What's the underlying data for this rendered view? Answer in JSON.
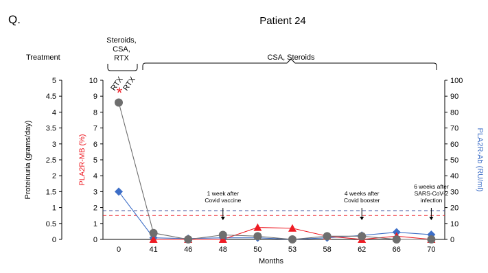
{
  "panel_letter": "Q.",
  "treatment_label": "Treatment",
  "treatment_first": [
    "Steroids,",
    "CSA,",
    "RTX"
  ],
  "treatment_second": "CSA, Steroids",
  "rtx_labels": [
    "RTX",
    "RTX"
  ],
  "asterisk": "*",
  "colors": {
    "proteinuria": "#6e6e6e",
    "pla2r_mb": "#ee1c24",
    "pla2r_ab": "#3d6ec7"
  },
  "chart_data": {
    "type": "line",
    "title": "Patient 24",
    "xlabel": "Months",
    "categories": [
      "0",
      "41",
      "46",
      "48",
      "50",
      "53",
      "58",
      "62",
      "66",
      "70"
    ],
    "y_axes": [
      {
        "id": "left-outer",
        "label": "Proteinuria (grams/day)",
        "range": [
          0,
          5
        ],
        "ticks": [
          "0",
          "0.5",
          "1",
          "1.5",
          "2",
          "2.5",
          "3",
          "3.5",
          "4",
          "4.5",
          "5"
        ]
      },
      {
        "id": "left-inner",
        "label": "PLA2R-MB (%)",
        "range": [
          0,
          10
        ],
        "ticks": [
          "0",
          "1",
          "2",
          "3",
          "4",
          "5",
          "6",
          "7",
          "8",
          "9",
          "10"
        ]
      },
      {
        "id": "right",
        "label": "PLA2R-Ab (RU/ml)",
        "range": [
          0,
          100
        ],
        "ticks": [
          "0",
          "10",
          "20",
          "30",
          "40",
          "50",
          "60",
          "70",
          "80",
          "90",
          "100"
        ]
      }
    ],
    "series": [
      {
        "axis": "left-outer",
        "marker": "circle",
        "values": [
          4.3,
          0.2,
          0.0,
          0.14,
          0.1,
          0.0,
          0.1,
          0.1,
          0.0,
          0.0
        ]
      },
      {
        "axis": "left-inner",
        "marker": "triangle",
        "values": [
          null,
          0.0,
          0.0,
          0.0,
          0.75,
          0.7,
          0.2,
          0.0,
          0.2,
          0.0
        ]
      },
      {
        "axis": "right",
        "marker": "diamond",
        "values": [
          30,
          1,
          0.5,
          1,
          1,
          0,
          1,
          2.5,
          4.5,
          3
        ]
      }
    ],
    "thresholds": [
      {
        "axis": "right",
        "value": 18,
        "color": "#2a3f8f",
        "style": "dashed"
      },
      {
        "axis": "left-inner",
        "value": 1.5,
        "color": "#ee1c24",
        "style": "dashed"
      }
    ],
    "annotations": [
      {
        "x": "48",
        "lines": [
          "1 week after",
          "Covid vaccine"
        ]
      },
      {
        "x": "62",
        "lines": [
          "4 weeks after",
          "Covid booster"
        ]
      },
      {
        "x": "70",
        "lines": [
          "6 weeks after",
          "SARS-CoV-2",
          "infection"
        ]
      }
    ],
    "grid": false,
    "legend": "none"
  }
}
